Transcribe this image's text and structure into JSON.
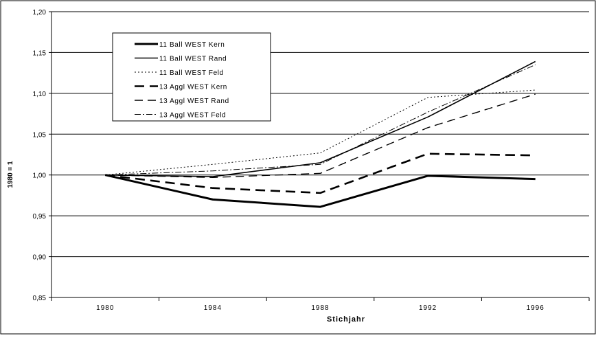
{
  "chart_data": {
    "type": "line",
    "title": "",
    "xlabel": "Stichjahr",
    "ylabel": "1980 = 1",
    "x": [
      1980,
      1984,
      1988,
      1992,
      1996
    ],
    "x_tick_labels": [
      "1980",
      "1984",
      "1988",
      "1992",
      "1996"
    ],
    "y_tick_labels": [
      "0,85",
      "0,90",
      "0,95",
      "1,00",
      "1,05",
      "1,10",
      "1,15",
      "1,20"
    ],
    "ylim": [
      0.85,
      1.2
    ],
    "grid": "horizontal",
    "legend_position": "top-left",
    "series": [
      {
        "name": "11 Ball WEST Kern",
        "style": "solid-thick",
        "values": [
          1.0,
          0.97,
          0.961,
          0.999,
          0.995
        ]
      },
      {
        "name": "11 Ball WEST Rand",
        "style": "solid",
        "values": [
          1.0,
          0.998,
          1.015,
          1.071,
          1.139
        ]
      },
      {
        "name": "11 Ball WEST Feld",
        "style": "dotted",
        "values": [
          1.0,
          1.013,
          1.027,
          1.095,
          1.104
        ]
      },
      {
        "name": "13 Aggl WEST Kern",
        "style": "dashed-thick",
        "values": [
          1.0,
          0.984,
          0.978,
          1.026,
          1.024
        ]
      },
      {
        "name": "13 Aggl WEST Rand",
        "style": "dashed",
        "values": [
          1.0,
          0.997,
          1.002,
          1.058,
          1.099
        ]
      },
      {
        "name": "13 Aggl WEST Feld",
        "style": "dashdot",
        "values": [
          1.0,
          1.005,
          1.013,
          1.077,
          1.135
        ]
      }
    ]
  }
}
